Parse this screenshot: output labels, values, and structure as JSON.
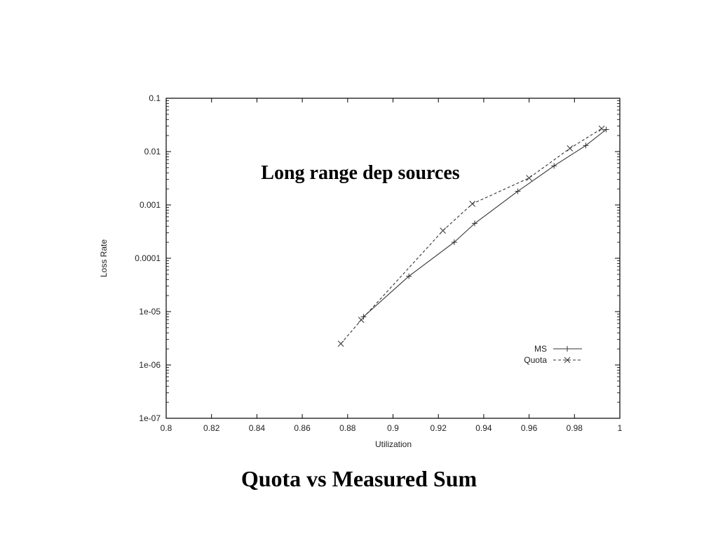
{
  "caption": "Quota vs Measured Sum",
  "chart_data": {
    "type": "line",
    "title": "",
    "annotation": "Long range dep sources",
    "xlabel": "Utilization",
    "ylabel": "Loss Rate",
    "xlim": [
      0.8,
      1.0
    ],
    "ylim": [
      1e-07,
      0.1
    ],
    "yscale": "log",
    "xticks": [
      "0.8",
      "0.82",
      "0.84",
      "0.86",
      "0.88",
      "0.9",
      "0.92",
      "0.94",
      "0.96",
      "0.98",
      "1"
    ],
    "yticks": [
      "1e-07",
      "1e-06",
      "1e-05",
      "0.0001",
      "0.001",
      "0.01",
      "0.1"
    ],
    "grid": false,
    "legend": "bottom-right",
    "series": [
      {
        "name": "MS",
        "marker": "+",
        "linestyle": "solid",
        "x": [
          0.887,
          0.907,
          0.927,
          0.936,
          0.955,
          0.971,
          0.985,
          0.994
        ],
        "y": [
          8e-06,
          4.6e-05,
          0.0002,
          0.00045,
          0.0018,
          0.0054,
          0.013,
          0.026
        ]
      },
      {
        "name": "Quota",
        "marker": "x",
        "linestyle": "dashed",
        "x": [
          0.877,
          0.886,
          0.922,
          0.935,
          0.96,
          0.978,
          0.992
        ],
        "y": [
          2.5e-06,
          7e-06,
          0.00033,
          0.00105,
          0.0032,
          0.0115,
          0.027
        ]
      }
    ]
  }
}
